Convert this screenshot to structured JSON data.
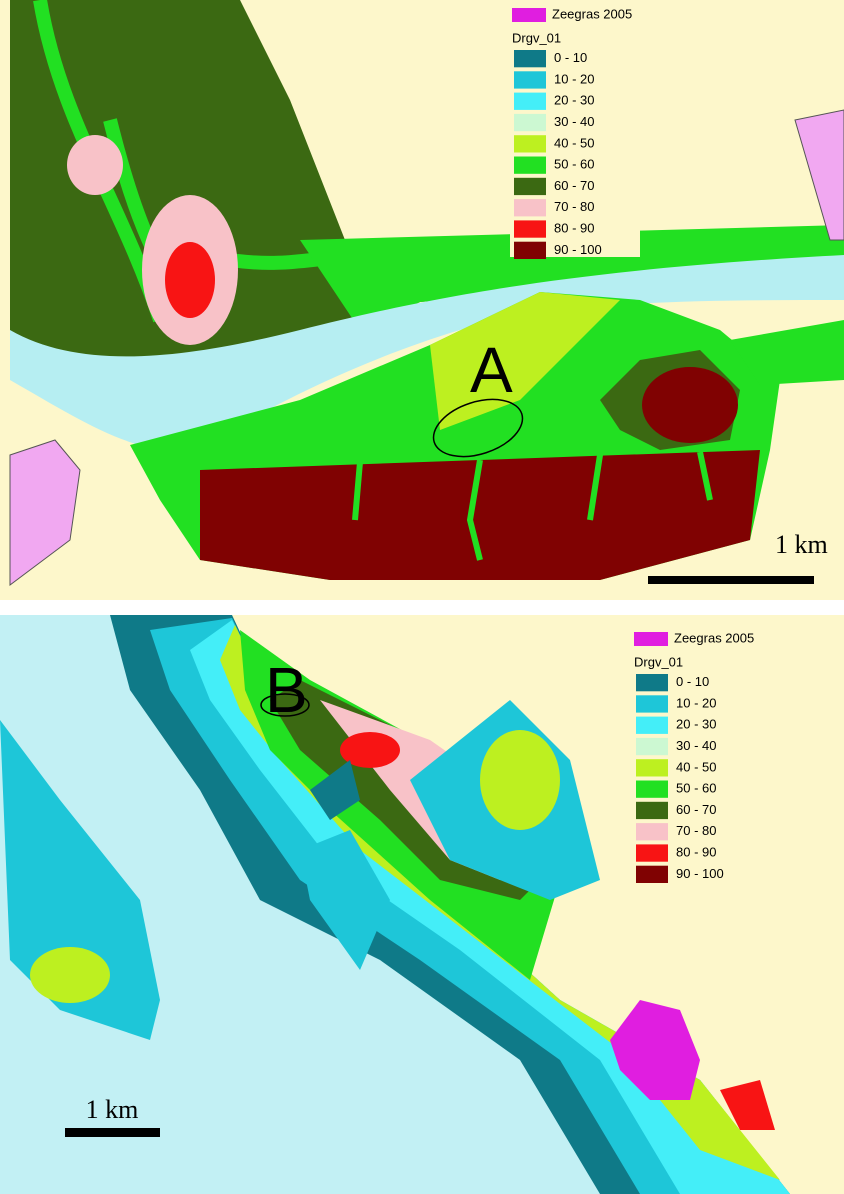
{
  "panels": [
    {
      "legend": {
        "zeegras": {
          "label": "Zeegras 2005",
          "color": "#e01ee0"
        },
        "title": "Drgv_01",
        "classes": [
          {
            "label": "0 - 10",
            "color": "#0f7a88"
          },
          {
            "label": "10 - 20",
            "color": "#1ec6d8"
          },
          {
            "label": "20 - 30",
            "color": "#44eef8"
          },
          {
            "label": "30 - 40",
            "color": "#ccf8d2"
          },
          {
            "label": "40 - 50",
            "color": "#bdf020"
          },
          {
            "label": "50 - 60",
            "color": "#22e022"
          },
          {
            "label": "60 - 70",
            "color": "#3b6912"
          },
          {
            "label": "70 - 80",
            "color": "#f8c2c8"
          },
          {
            "label": "80 - 90",
            "color": "#f81414"
          },
          {
            "label": "90 - 100",
            "color": "#800202"
          }
        ]
      },
      "label": "A",
      "scale": "1 km"
    },
    {
      "legend": {
        "zeegras": {
          "label": "Zeegras 2005",
          "color": "#e01ee0"
        },
        "title": "Drgv_01",
        "classes": [
          {
            "label": "0 - 10",
            "color": "#0f7a88"
          },
          {
            "label": "10 - 20",
            "color": "#1ec6d8"
          },
          {
            "label": "20 - 30",
            "color": "#44eef8"
          },
          {
            "label": "30 - 40",
            "color": "#ccf8d2"
          },
          {
            "label": "40 - 50",
            "color": "#bdf020"
          },
          {
            "label": "50 - 60",
            "color": "#22e022"
          },
          {
            "label": "60 - 70",
            "color": "#3b6912"
          },
          {
            "label": "70 - 80",
            "color": "#f8c2c8"
          },
          {
            "label": "80 - 90",
            "color": "#f81414"
          },
          {
            "label": "90 - 100",
            "color": "#800202"
          }
        ]
      },
      "label": "B",
      "scale": "1 km"
    }
  ]
}
